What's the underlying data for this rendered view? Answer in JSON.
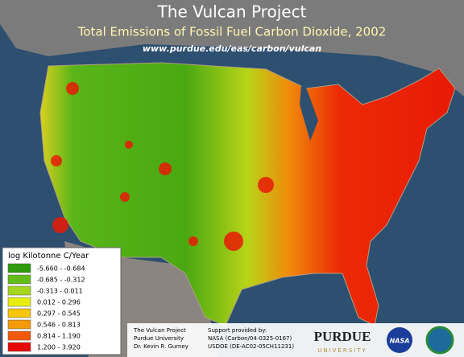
{
  "header": {
    "title": "The Vulcan Project",
    "subtitle": "Total Emissions of Fossil Fuel Carbon Dioxide, 2002",
    "url": "www.purdue.edu/eas/carbon/vulcan"
  },
  "legend": {
    "title": "log Kilotonne C/Year",
    "items": [
      {
        "color": "#2f9a0c",
        "label": "-5.660  -  -0.684"
      },
      {
        "color": "#62bd18",
        "label": "-0.685  -  -0.312"
      },
      {
        "color": "#a6d61e",
        "label": "-0.313  -  0.011"
      },
      {
        "color": "#e6ef10",
        "label": "0.012  -  0.296"
      },
      {
        "color": "#f6c60a",
        "label": "0.297  -  0.545"
      },
      {
        "color": "#f59a0a",
        "label": "0.546  -  0.813"
      },
      {
        "color": "#f25a08",
        "label": "0.814  -  1.190"
      },
      {
        "color": "#e60a05",
        "label": "1.200  -  3.920"
      }
    ]
  },
  "footer": {
    "credits": [
      "The Vulcan Project",
      "Purdue University",
      "Dr. Kevin R. Gurney"
    ],
    "support": [
      "Support provided by:",
      "NASA (Carbon/04-0325-0167)",
      "USDOE (DE-AC02-05CH11231)"
    ],
    "logos": [
      "PURDUE",
      "UNIVERSITY",
      "NASA"
    ]
  }
}
